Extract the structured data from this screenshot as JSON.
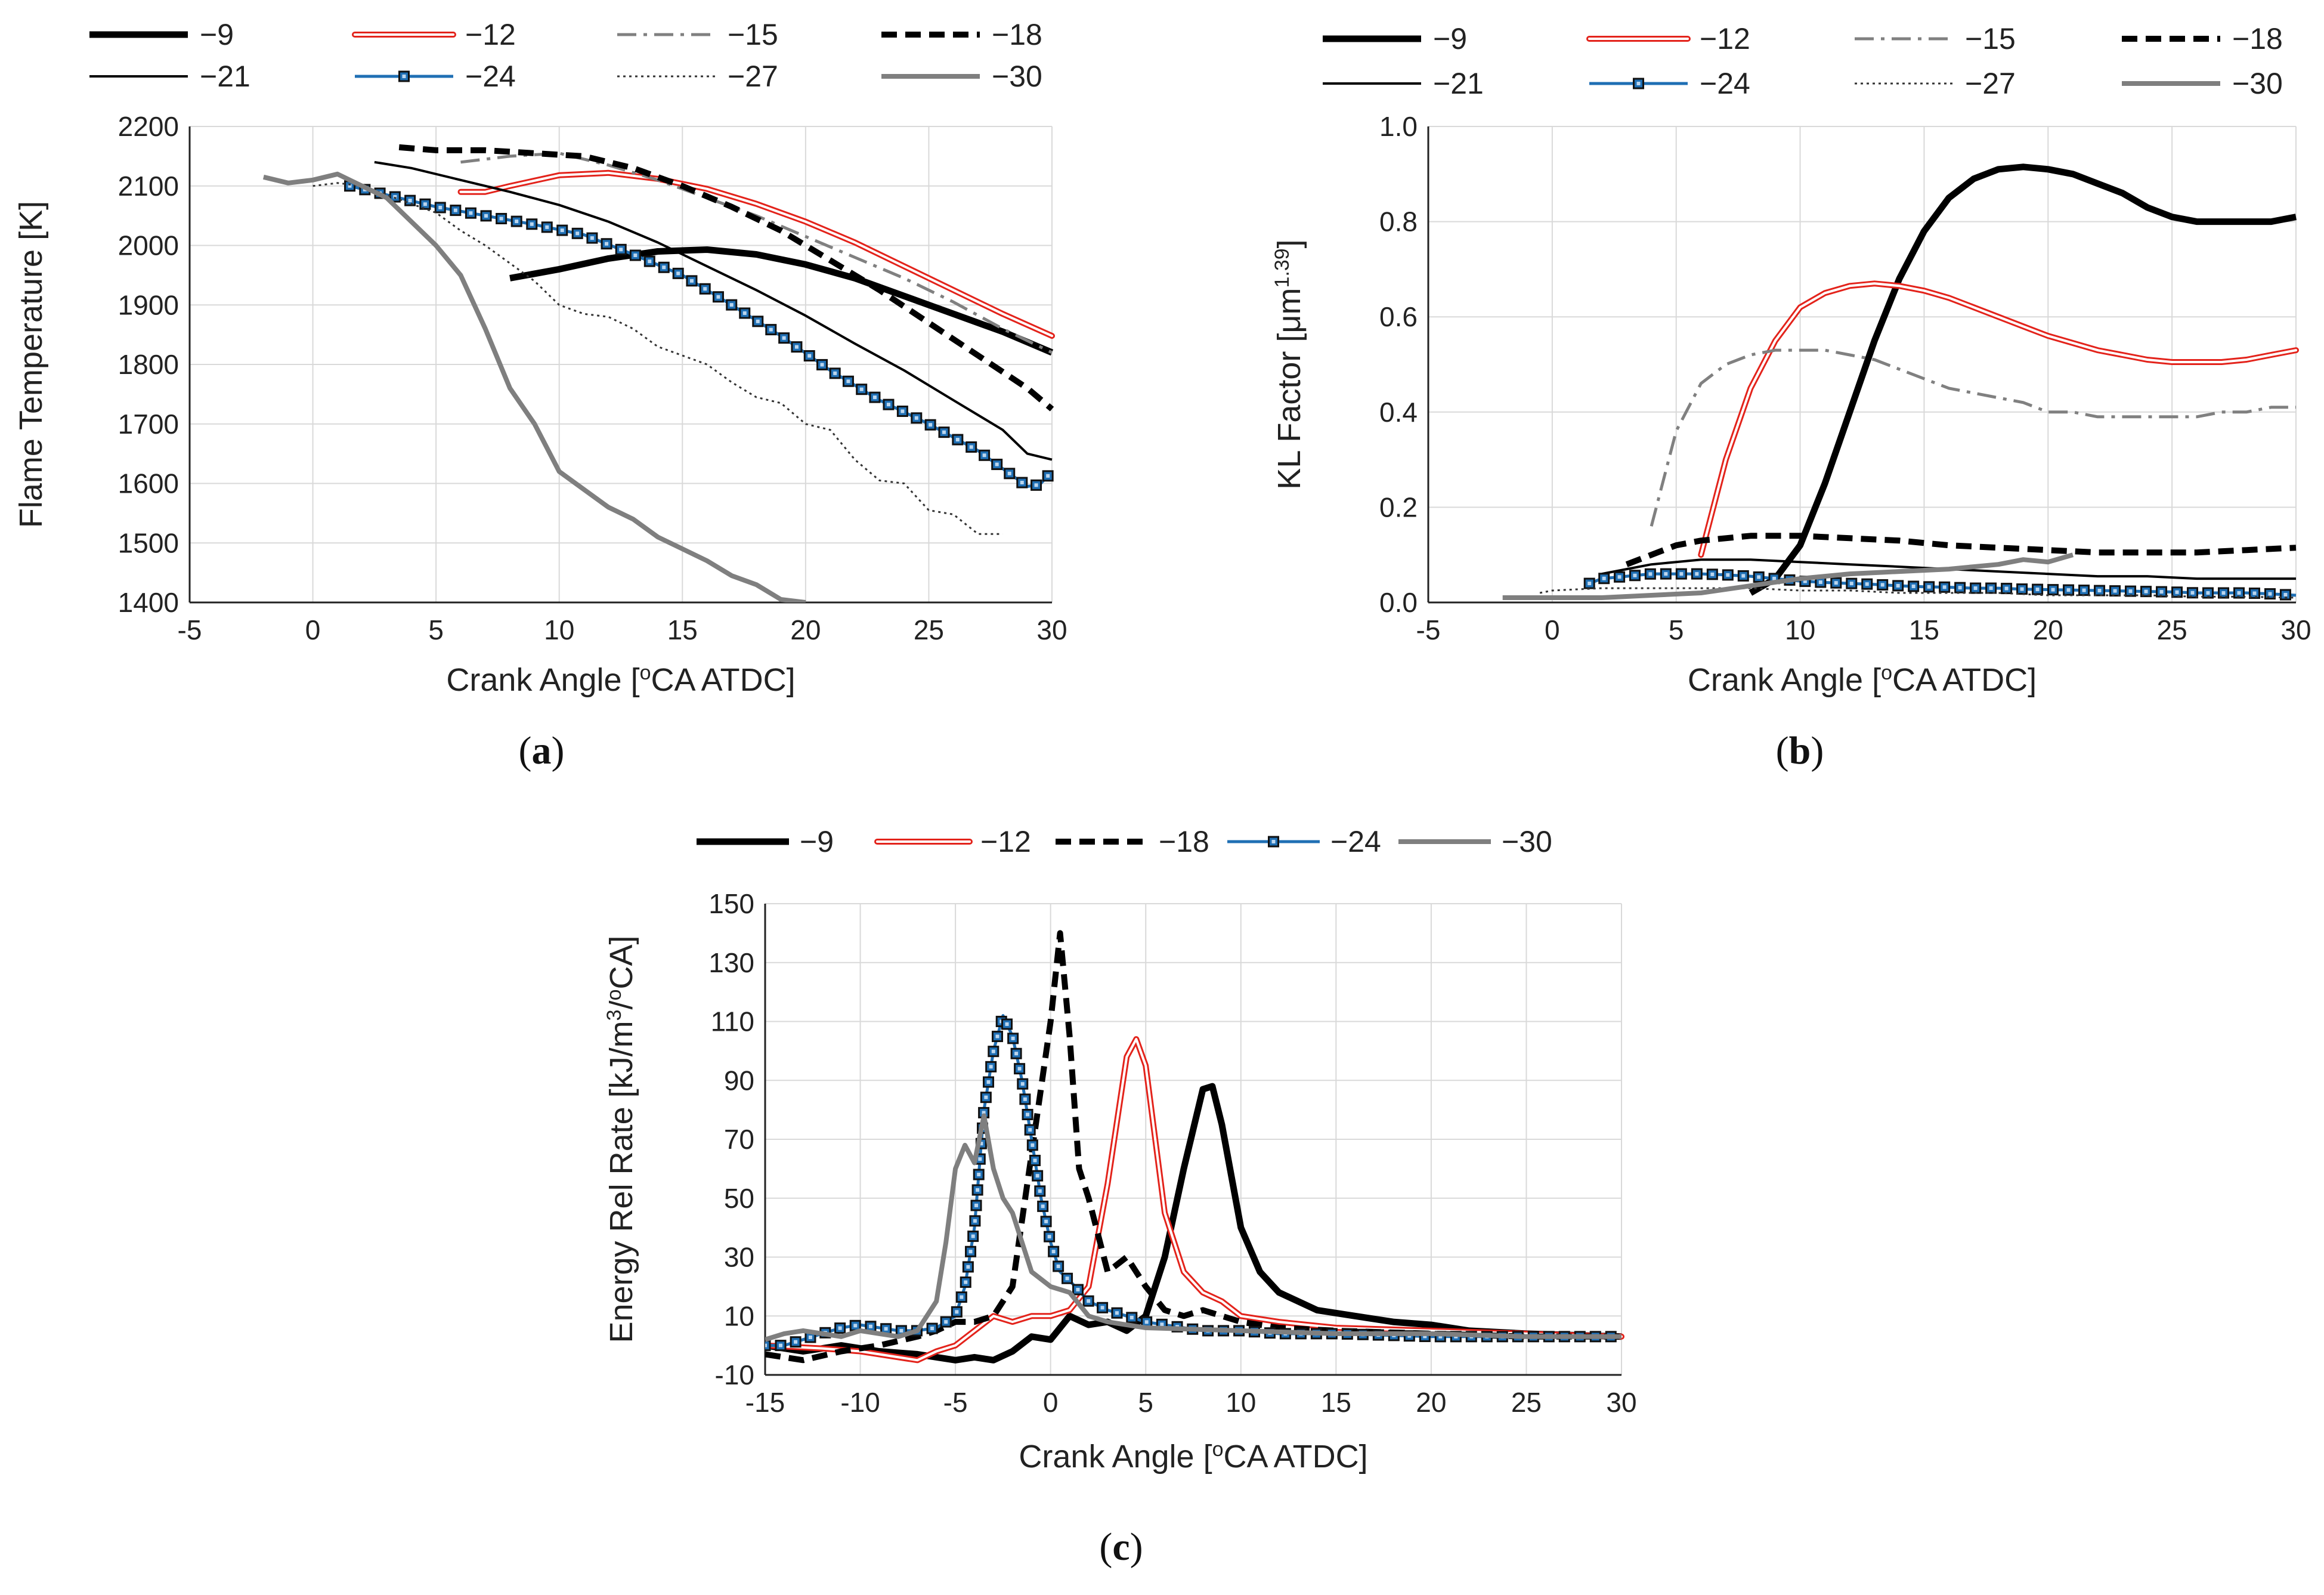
{
  "chart_data": [
    {
      "id": "a",
      "type": "line",
      "panel_label": "a",
      "xlabel": "Crank Angle [",
      "xlabel_sup": "o",
      "xlabel_end": "CA ATDC]",
      "ylabel": "Flame Temperature [K]",
      "xlim": [
        -5,
        30
      ],
      "ylim": [
        1400,
        2200
      ],
      "xticks": [
        -5,
        0,
        5,
        10,
        15,
        20,
        25,
        30
      ],
      "yticks": [
        1400,
        1500,
        1600,
        1700,
        1800,
        1900,
        2000,
        2100,
        2200
      ],
      "grid": true,
      "legend": [
        "-9",
        "-12",
        "-15",
        "-18",
        "-21",
        "-24",
        "-27",
        "-30"
      ],
      "series": [
        {
          "name": "-9",
          "x": [
            8,
            10,
            12,
            14,
            16,
            18,
            20,
            22,
            24,
            26,
            28,
            30
          ],
          "y": [
            1945,
            1960,
            1978,
            1990,
            1993,
            1985,
            1968,
            1945,
            1915,
            1885,
            1855,
            1820
          ]
        },
        {
          "name": "-12",
          "x": [
            6,
            7,
            8,
            10,
            12,
            14,
            16,
            18,
            20,
            22,
            24,
            26,
            28,
            30
          ],
          "y": [
            2090,
            2090,
            2100,
            2118,
            2122,
            2112,
            2095,
            2070,
            2040,
            2005,
            1965,
            1925,
            1885,
            1848
          ]
        },
        {
          "name": "-15",
          "x": [
            6,
            8,
            10,
            12,
            14,
            16,
            18,
            20,
            22,
            24,
            26,
            28,
            30
          ],
          "y": [
            2140,
            2150,
            2155,
            2135,
            2110,
            2080,
            2050,
            2015,
            1980,
            1945,
            1905,
            1860,
            1820
          ]
        },
        {
          "name": "-18",
          "x": [
            3.5,
            5,
            7,
            9,
            11,
            13,
            15,
            17,
            19,
            21,
            23,
            25,
            27,
            29,
            30
          ],
          "y": [
            2165,
            2160,
            2160,
            2155,
            2150,
            2130,
            2100,
            2065,
            2025,
            1975,
            1925,
            1870,
            1815,
            1760,
            1725
          ]
        },
        {
          "name": "-21",
          "x": [
            2.5,
            4,
            6,
            8,
            10,
            12,
            14,
            16,
            18,
            20,
            22,
            24,
            26,
            28,
            29,
            30
          ],
          "y": [
            2140,
            2130,
            2110,
            2090,
            2068,
            2040,
            2005,
            1965,
            1925,
            1882,
            1835,
            1790,
            1740,
            1690,
            1650,
            1640
          ]
        },
        {
          "name": "-24",
          "x": [
            1.5,
            3,
            5,
            7,
            9,
            11,
            13,
            15,
            17,
            19,
            21,
            23,
            25,
            27,
            28,
            29,
            29.5,
            30
          ],
          "y": [
            2100,
            2085,
            2065,
            2050,
            2035,
            2018,
            1985,
            1950,
            1900,
            1848,
            1790,
            1740,
            1700,
            1655,
            1625,
            1595,
            1598,
            1620
          ]
        },
        {
          "name": "-27",
          "x": [
            0,
            1,
            2,
            3,
            4,
            5,
            6,
            7,
            8,
            9,
            10,
            11,
            12,
            13,
            14,
            15,
            16,
            17,
            18,
            19,
            20,
            21,
            22,
            23,
            24,
            25,
            26,
            27,
            28
          ],
          "y": [
            2100,
            2105,
            2100,
            2085,
            2070,
            2055,
            2025,
            2000,
            1970,
            1940,
            1900,
            1885,
            1880,
            1860,
            1830,
            1815,
            1800,
            1770,
            1745,
            1735,
            1700,
            1690,
            1640,
            1605,
            1600,
            1555,
            1548,
            1515,
            1515
          ]
        },
        {
          "name": "-30",
          "x": [
            -2,
            -1,
            0,
            1,
            2,
            3,
            4,
            5,
            6,
            7,
            8,
            9,
            10,
            11,
            12,
            13,
            14,
            15,
            16,
            17,
            18,
            19,
            20
          ],
          "y": [
            2115,
            2105,
            2110,
            2120,
            2100,
            2080,
            2040,
            2000,
            1950,
            1860,
            1760,
            1700,
            1620,
            1590,
            1560,
            1540,
            1510,
            1490,
            1470,
            1445,
            1430,
            1405,
            1400
          ]
        }
      ]
    },
    {
      "id": "b",
      "type": "line",
      "panel_label": "b",
      "xlabel": "Crank Angle [",
      "xlabel_sup": "o",
      "xlabel_end": "CA ATDC]",
      "ylabel": "KL Factor [μm",
      "ylabel_sup": "1.39",
      "ylabel_end": "]",
      "xlim": [
        -5,
        30
      ],
      "ylim": [
        0.0,
        1.0
      ],
      "xticks": [
        -5,
        0,
        5,
        10,
        15,
        20,
        25,
        30
      ],
      "yticks": [
        "0.0",
        "0.2",
        "0.4",
        "0.6",
        "0.8",
        "1.0"
      ],
      "grid": true,
      "legend": [
        "-9",
        "-12",
        "-15",
        "-18",
        "-21",
        "-24",
        "-27",
        "-30"
      ],
      "series": [
        {
          "name": "-9",
          "x": [
            8,
            9,
            10,
            11,
            12,
            13,
            14,
            15,
            16,
            17,
            18,
            19,
            20,
            21,
            22,
            23,
            24,
            25,
            26,
            27,
            28,
            29,
            30
          ],
          "y": [
            0.02,
            0.05,
            0.12,
            0.25,
            0.4,
            0.55,
            0.68,
            0.78,
            0.85,
            0.89,
            0.91,
            0.915,
            0.91,
            0.9,
            0.88,
            0.86,
            0.83,
            0.81,
            0.8,
            0.8,
            0.8,
            0.8,
            0.81
          ]
        },
        {
          "name": "-12",
          "x": [
            6,
            7,
            8,
            9,
            10,
            11,
            12,
            13,
            14,
            15,
            16,
            17,
            18,
            19,
            20,
            21,
            22,
            23,
            24,
            25,
            26,
            27,
            28,
            29,
            30
          ],
          "y": [
            0.1,
            0.3,
            0.45,
            0.55,
            0.62,
            0.65,
            0.665,
            0.67,
            0.665,
            0.655,
            0.64,
            0.62,
            0.6,
            0.58,
            0.56,
            0.545,
            0.53,
            0.52,
            0.51,
            0.505,
            0.505,
            0.505,
            0.51,
            0.52,
            0.53
          ]
        },
        {
          "name": "-15",
          "x": [
            4,
            5,
            6,
            7,
            8,
            9,
            10,
            11,
            12,
            13,
            14,
            15,
            16,
            17,
            18,
            19,
            20,
            21,
            22,
            23,
            24,
            25,
            26,
            27,
            28,
            29,
            30
          ],
          "y": [
            0.16,
            0.36,
            0.46,
            0.5,
            0.52,
            0.53,
            0.53,
            0.53,
            0.52,
            0.51,
            0.49,
            0.47,
            0.45,
            0.44,
            0.43,
            0.42,
            0.4,
            0.4,
            0.39,
            0.39,
            0.39,
            0.39,
            0.39,
            0.4,
            0.4,
            0.41,
            0.41
          ]
        },
        {
          "name": "-18",
          "x": [
            3,
            4,
            5,
            6,
            7,
            8,
            9,
            10,
            12,
            14,
            16,
            18,
            20,
            22,
            24,
            26,
            28,
            30
          ],
          "y": [
            0.08,
            0.1,
            0.12,
            0.13,
            0.135,
            0.14,
            0.14,
            0.14,
            0.135,
            0.13,
            0.12,
            0.115,
            0.11,
            0.105,
            0.105,
            0.105,
            0.11,
            0.115
          ]
        },
        {
          "name": "-21",
          "x": [
            2,
            3,
            4,
            5,
            6,
            8,
            10,
            12,
            14,
            16,
            18,
            20,
            22,
            24,
            26,
            28,
            30
          ],
          "y": [
            0.06,
            0.07,
            0.08,
            0.085,
            0.09,
            0.09,
            0.085,
            0.08,
            0.075,
            0.07,
            0.065,
            0.06,
            0.055,
            0.055,
            0.05,
            0.05,
            0.05
          ]
        },
        {
          "name": "-24",
          "x": [
            1.5,
            2,
            3,
            4,
            5,
            6,
            7,
            8,
            9,
            10,
            11,
            12,
            13,
            14,
            15,
            16,
            17,
            18,
            19,
            20,
            21,
            22,
            23,
            24,
            25,
            26,
            27,
            28,
            29,
            30
          ],
          "y": [
            0.04,
            0.05,
            0.055,
            0.06,
            0.06,
            0.06,
            0.058,
            0.055,
            0.05,
            0.045,
            0.042,
            0.04,
            0.038,
            0.035,
            0.033,
            0.032,
            0.03,
            0.03,
            0.028,
            0.027,
            0.026,
            0.025,
            0.024,
            0.023,
            0.022,
            0.02,
            0.02,
            0.02,
            0.018,
            0.015
          ]
        },
        {
          "name": "-27",
          "x": [
            -0.5,
            0,
            2,
            4,
            6,
            8,
            10,
            12,
            14,
            16,
            18,
            20,
            22,
            24,
            26,
            28,
            30
          ],
          "y": [
            0.02,
            0.025,
            0.03,
            0.03,
            0.03,
            0.03,
            0.025,
            0.025,
            0.02,
            0.02,
            0.02,
            0.015,
            0.015,
            0.015,
            0.012,
            0.012,
            0.01
          ]
        },
        {
          "name": "-30",
          "x": [
            -2,
            0,
            2,
            4,
            6,
            8,
            10,
            12,
            14,
            16,
            17,
            18,
            19,
            20,
            21
          ],
          "y": [
            0.01,
            0.01,
            0.01,
            0.015,
            0.02,
            0.035,
            0.05,
            0.06,
            0.065,
            0.07,
            0.075,
            0.08,
            0.09,
            0.085,
            0.1
          ]
        }
      ]
    },
    {
      "id": "c",
      "type": "line",
      "panel_label": "c",
      "xlabel": "Crank Angle [",
      "xlabel_sup": "o",
      "xlabel_end": "CA ATDC]",
      "ylabel": "Energy Rel Rate [kJ/m",
      "ylabel_sup": "3",
      "ylabel_end": "/",
      "ylabel_sup2": "o",
      "ylabel_end2": "CA]",
      "xlim": [
        -15,
        30
      ],
      "ylim": [
        -10,
        150
      ],
      "xticks": [
        -15,
        -10,
        -5,
        0,
        5,
        10,
        15,
        20,
        25,
        30
      ],
      "yticks": [
        -10,
        10,
        30,
        50,
        70,
        90,
        110,
        130,
        150
      ],
      "grid": true,
      "legend": [
        "-9",
        "-12",
        "-18",
        "-24",
        "-30"
      ],
      "series": [
        {
          "name": "-9",
          "x": [
            -15,
            -13,
            -11,
            -9,
            -7,
            -5,
            -4,
            -3,
            -2,
            -1,
            0,
            1,
            2,
            3,
            4,
            5,
            6,
            7,
            8,
            8.5,
            9,
            10,
            11,
            12,
            14,
            16,
            18,
            20,
            22,
            25,
            30
          ],
          "y": [
            0,
            -2,
            0,
            -2,
            -3,
            -5,
            -4,
            -5,
            -2,
            3,
            2,
            10,
            7,
            8,
            5,
            10,
            30,
            60,
            87,
            88,
            75,
            40,
            25,
            18,
            12,
            10,
            8,
            7,
            5,
            4,
            3
          ]
        },
        {
          "name": "-12",
          "x": [
            -15,
            -12,
            -10,
            -8,
            -7,
            -6,
            -5,
            -4,
            -3,
            -2,
            -1,
            0,
            1,
            2,
            3,
            4,
            4.5,
            5,
            6,
            7,
            8,
            9,
            10,
            12,
            15,
            20,
            25,
            30
          ],
          "y": [
            0,
            -1,
            -2,
            -4,
            -5,
            -2,
            0,
            5,
            10,
            8,
            10,
            10,
            12,
            20,
            55,
            98,
            104,
            95,
            45,
            25,
            18,
            15,
            10,
            8,
            6,
            5,
            4,
            3
          ]
        },
        {
          "name": "-18",
          "x": [
            -15,
            -13,
            -11,
            -9,
            -7,
            -6,
            -5,
            -4,
            -3,
            -2,
            -1,
            0,
            0.5,
            1,
            1.5,
            2,
            3,
            4,
            5,
            6,
            7,
            8,
            10,
            12,
            15,
            20,
            25,
            30
          ],
          "y": [
            -3,
            -5,
            -2,
            0,
            3,
            5,
            8,
            8,
            10,
            20,
            65,
            110,
            140,
            105,
            60,
            50,
            25,
            30,
            20,
            12,
            10,
            12,
            8,
            6,
            5,
            4,
            3,
            3
          ]
        },
        {
          "name": "-24",
          "x": [
            -15,
            -14,
            -13,
            -12,
            -11,
            -10,
            -9,
            -8,
            -7,
            -6,
            -5,
            -4.5,
            -4,
            -3.5,
            -3,
            -2.5,
            -2,
            -1.5,
            -1,
            -0.5,
            0,
            0.5,
            1,
            2,
            3,
            4,
            5,
            6,
            8,
            10,
            12,
            15,
            20,
            25,
            30
          ],
          "y": [
            0,
            0,
            2,
            4,
            6,
            7,
            6,
            5,
            5,
            6,
            10,
            20,
            40,
            80,
            100,
            112,
            105,
            90,
            70,
            50,
            35,
            25,
            22,
            15,
            12,
            10,
            8,
            7,
            5,
            5,
            4,
            4,
            3,
            3,
            3
          ]
        },
        {
          "name": "-30",
          "x": [
            -15,
            -14,
            -13,
            -12,
            -11,
            -10,
            -9,
            -8,
            -7,
            -6,
            -5.5,
            -5,
            -4.5,
            -4,
            -3.5,
            -3,
            -2.5,
            -2,
            -1.5,
            -1,
            0,
            1,
            2,
            3,
            5,
            10,
            15,
            20,
            25,
            30
          ],
          "y": [
            2,
            4,
            5,
            4,
            3,
            5,
            4,
            3,
            5,
            15,
            35,
            60,
            68,
            62,
            78,
            60,
            50,
            45,
            35,
            25,
            20,
            18,
            10,
            8,
            6,
            5,
            4,
            4,
            3,
            3
          ]
        }
      ]
    }
  ]
}
